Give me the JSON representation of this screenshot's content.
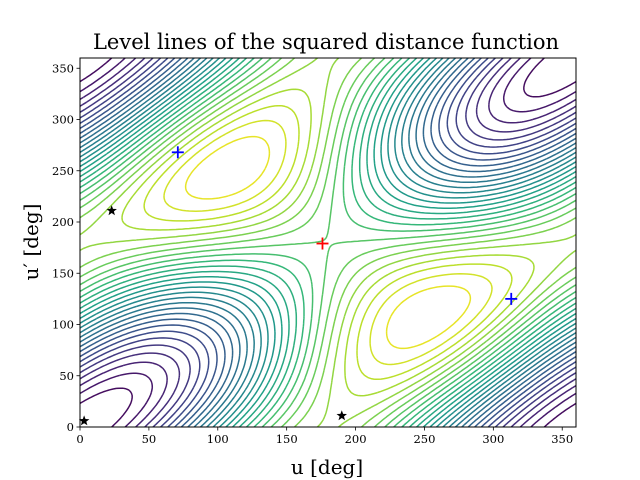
{
  "chart_data": {
    "type": "contour",
    "title": "Level lines of the squared distance function",
    "xlabel": "u [deg]",
    "ylabel": "u′ [deg]",
    "xlim": [
      0,
      360
    ],
    "ylim": [
      0,
      360
    ],
    "xticks": [
      0,
      50,
      100,
      150,
      200,
      250,
      300,
      350
    ],
    "yticks": [
      0,
      50,
      100,
      150,
      200,
      250,
      300,
      350
    ],
    "grid": false,
    "colormap": "viridis",
    "max_marker": {
      "x": 176,
      "y": 179,
      "marker": "plus",
      "color": "#ff0000"
    },
    "saddle_markers": [
      {
        "x": 71,
        "y": 268,
        "marker": "plus",
        "color": "#0000ff"
      },
      {
        "x": 313,
        "y": 125,
        "marker": "plus",
        "color": "#0000ff"
      }
    ],
    "min_markers": [
      {
        "x": 23,
        "y": 211,
        "marker": "star",
        "color": "#000000"
      },
      {
        "x": 3,
        "y": 6,
        "marker": "star",
        "color": "#000000"
      },
      {
        "x": 190,
        "y": 11,
        "marker": "star",
        "color": "#000000"
      }
    ]
  }
}
